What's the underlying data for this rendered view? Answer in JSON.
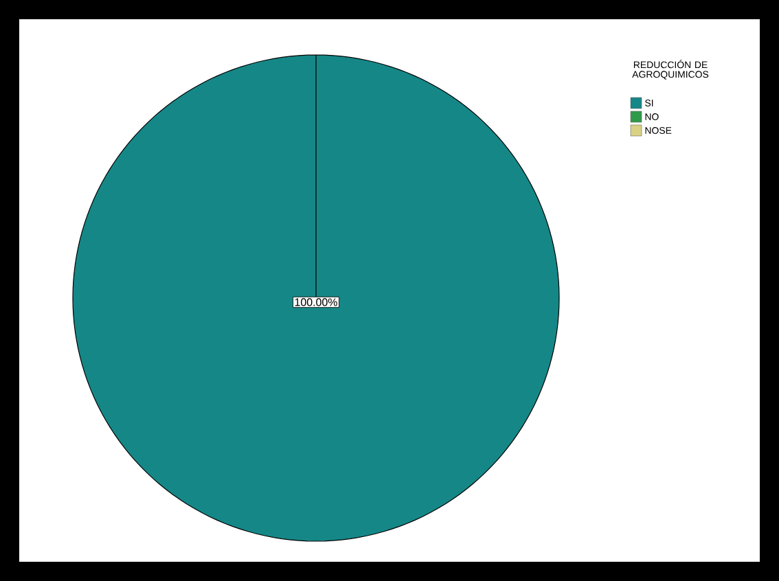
{
  "chart_data": {
    "type": "pie",
    "legend_title": "REDUCCIÓN DE AGROQUIMICOS",
    "legend": "top right",
    "categories": [
      "SI",
      "NO",
      "NOSE"
    ],
    "values": [
      100,
      0,
      0
    ],
    "colors": [
      "#168787",
      "#2f9a4a",
      "#d9d184"
    ],
    "value_labels": [
      "100.00%",
      null,
      null
    ]
  }
}
